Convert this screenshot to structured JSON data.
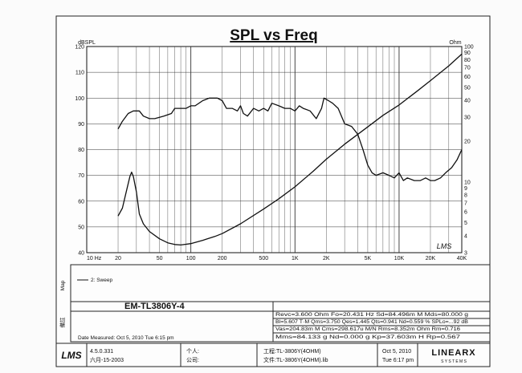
{
  "chart_data": {
    "type": "line",
    "title": "SPL vs Freq",
    "ylabel_left": "dBSPL",
    "ylabel_right": "Ohm",
    "x_scale": "log",
    "xlim": [
      10,
      40000
    ],
    "ylim_left": [
      40,
      120
    ],
    "ylim_right_log": [
      3,
      100
    ],
    "x_tick_values": [
      10,
      20,
      50,
      100,
      200,
      500,
      1000,
      2000,
      5000,
      10000,
      20000,
      40000
    ],
    "x_tick_labels": [
      "10 Hz",
      "20",
      "50",
      "100",
      "200",
      "500",
      "1K",
      "2K",
      "5K",
      "10K",
      "20K",
      "40K"
    ],
    "left_tick_values": [
      40,
      50,
      60,
      70,
      80,
      90,
      100,
      110,
      120
    ],
    "right_tick_values": [
      3,
      4,
      5,
      6,
      7,
      8,
      9,
      10,
      20,
      30,
      40,
      50,
      60,
      70,
      80,
      90,
      100
    ],
    "right_tick_labels": [
      "3",
      "4",
      "5",
      "6",
      "7",
      "8",
      "9",
      "10",
      "20",
      "30",
      "40",
      "50",
      "60",
      "70",
      "80",
      "90",
      "100"
    ],
    "grid": true,
    "series": [
      {
        "axis": "left",
        "color": "#111111",
        "points": [
          [
            20,
            88
          ],
          [
            22,
            91
          ],
          [
            25,
            94
          ],
          [
            28,
            95
          ],
          [
            32,
            95
          ],
          [
            35,
            93
          ],
          [
            40,
            92
          ],
          [
            45,
            92
          ],
          [
            55,
            93
          ],
          [
            65,
            94
          ],
          [
            70,
            96
          ],
          [
            80,
            96
          ],
          [
            90,
            96
          ],
          [
            100,
            97
          ],
          [
            110,
            97
          ],
          [
            130,
            99
          ],
          [
            150,
            100
          ],
          [
            180,
            100
          ],
          [
            200,
            99
          ],
          [
            220,
            96
          ],
          [
            250,
            96
          ],
          [
            280,
            95
          ],
          [
            300,
            97
          ],
          [
            320,
            94
          ],
          [
            350,
            93
          ],
          [
            400,
            96
          ],
          [
            450,
            95
          ],
          [
            500,
            96
          ],
          [
            550,
            95
          ],
          [
            600,
            98
          ],
          [
            700,
            97
          ],
          [
            800,
            96
          ],
          [
            900,
            96
          ],
          [
            1000,
            95
          ],
          [
            1100,
            97
          ],
          [
            1200,
            96
          ],
          [
            1400,
            95
          ],
          [
            1600,
            92
          ],
          [
            1800,
            96
          ],
          [
            1900,
            100
          ],
          [
            2100,
            99
          ],
          [
            2300,
            98
          ],
          [
            2600,
            96
          ],
          [
            3000,
            90
          ],
          [
            3500,
            89
          ],
          [
            4000,
            86
          ],
          [
            4500,
            80
          ],
          [
            5000,
            74
          ],
          [
            5500,
            71
          ],
          [
            6000,
            70
          ],
          [
            7000,
            71
          ],
          [
            8000,
            70
          ],
          [
            9000,
            69
          ],
          [
            10000,
            71
          ],
          [
            11000,
            68
          ],
          [
            12000,
            69
          ],
          [
            14000,
            68
          ],
          [
            16000,
            68
          ],
          [
            18000,
            69
          ],
          [
            20000,
            68
          ],
          [
            22000,
            68
          ],
          [
            25000,
            69
          ],
          [
            28000,
            71
          ],
          [
            32000,
            73
          ],
          [
            36000,
            76
          ],
          [
            40000,
            80
          ]
        ]
      },
      {
        "axis": "right",
        "color": "#111111",
        "points": [
          [
            20,
            5.6
          ],
          [
            22,
            6.4
          ],
          [
            24,
            8.5
          ],
          [
            26,
            11
          ],
          [
            27,
            11.8
          ],
          [
            28,
            11
          ],
          [
            30,
            8.4
          ],
          [
            32,
            5.8
          ],
          [
            35,
            4.9
          ],
          [
            40,
            4.3
          ],
          [
            50,
            3.8
          ],
          [
            60,
            3.55
          ],
          [
            70,
            3.45
          ],
          [
            80,
            3.42
          ],
          [
            100,
            3.5
          ],
          [
            130,
            3.7
          ],
          [
            170,
            3.95
          ],
          [
            200,
            4.15
          ],
          [
            300,
            4.9
          ],
          [
            500,
            6.3
          ],
          [
            700,
            7.5
          ],
          [
            1000,
            9.2
          ],
          [
            1500,
            12
          ],
          [
            2000,
            14.7
          ],
          [
            3000,
            19
          ],
          [
            5000,
            25.5
          ],
          [
            7000,
            31
          ],
          [
            10000,
            37
          ],
          [
            15000,
            47
          ],
          [
            20000,
            56
          ],
          [
            30000,
            72
          ],
          [
            40000,
            88
          ]
        ]
      }
    ],
    "legend": "bottom-left",
    "legend_entries": [
      "2: Sweep"
    ]
  },
  "map_label": "Map",
  "notes_label": "備註",
  "model": "EM-TL3806Y-4",
  "params": {
    "line1": "Revc=3.600 Ohm  Fo=20.431 Hz  Sd=84.496m M  Mds=80.000 g",
    "line2": "Bl=5.607 T·M  Qms=3.750  Qes=1.445  Qts=0.941  Nd=0.559 %  SPLo=...92 dB",
    "line3": "Vas=204.83m M  Cms=298.617u M/N  Rms=8.352m Ohm  Rm=0.716",
    "line4": "Mms=84.133 g  Nd=0.000 g  Kp=37.603m H  Rp=0.567"
  },
  "date_measured": "Date Measured: Oct 5, 2010   Tue 6:15 pm",
  "footer": {
    "logo": "LMS",
    "version": "4.5.0.331",
    "version_date": "六月-15-2003",
    "person_label": "个人:",
    "company_label": "公司:",
    "project": "工程:TL-3806Y(4OHM)",
    "file": "文件:TL-3806Y(4OHM).lib",
    "date": "Oct 5, 2010",
    "time": "Tue  6:17 pm",
    "brand": "LINEARX",
    "brand_sub": "S Y S T E M S"
  },
  "watermark": "LMS"
}
